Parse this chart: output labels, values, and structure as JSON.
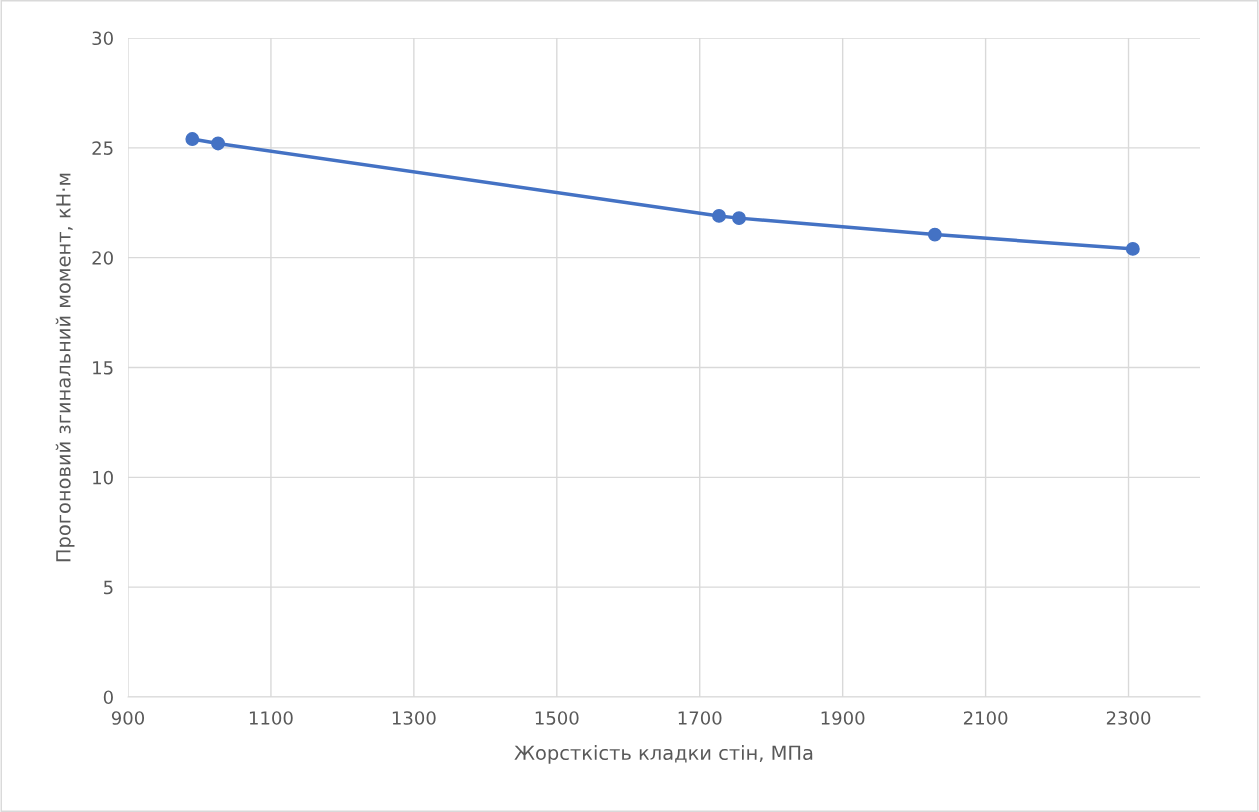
{
  "chart_data": {
    "type": "line",
    "xlabel": "Жорсткість кладки стін, МПа",
    "ylabel": "Прогоновий згинальний момент, кН·м",
    "x": [
      990,
      1026,
      1727,
      1755,
      2029,
      2306
    ],
    "series": [
      {
        "color": "#4472c4",
        "values": [
          25.4,
          25.2,
          21.9,
          21.8,
          21.05,
          20.4
        ]
      }
    ],
    "xlim": [
      900,
      2400
    ],
    "xticks": [
      900,
      1100,
      1300,
      1500,
      1700,
      1900,
      2100,
      2300
    ],
    "ylim": [
      0,
      30
    ],
    "yticks": [
      0,
      5,
      10,
      15,
      20,
      25,
      30
    ],
    "grid": true,
    "marker": "circle",
    "line_style": "solid"
  }
}
